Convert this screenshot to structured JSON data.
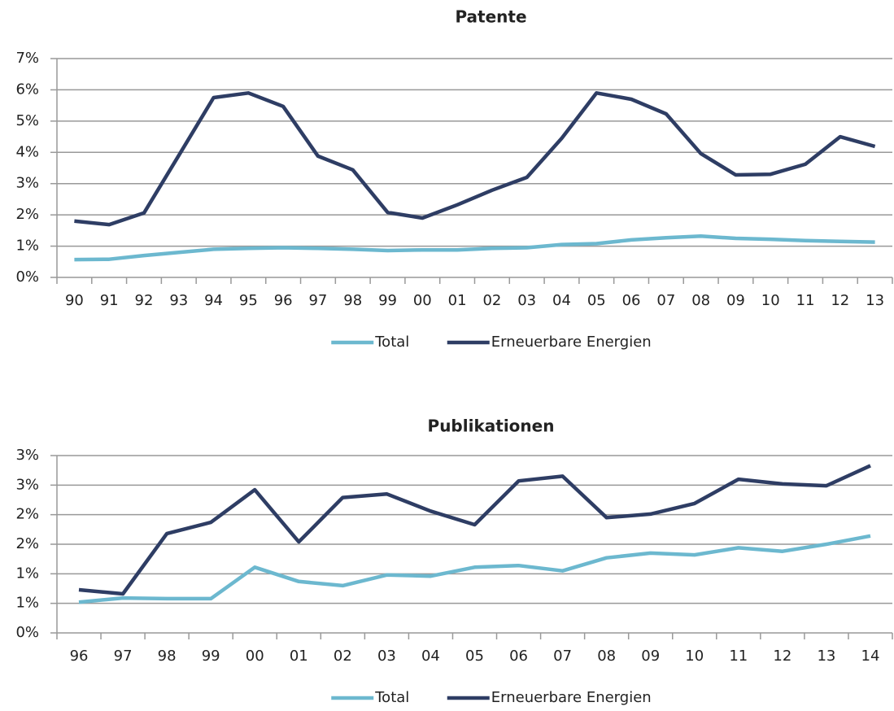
{
  "chart_data": [
    {
      "type": "line",
      "title": "Patente",
      "categories": [
        "90",
        "91",
        "92",
        "93",
        "94",
        "95",
        "96",
        "97",
        "98",
        "99",
        "00",
        "01",
        "02",
        "03",
        "04",
        "05",
        "06",
        "07",
        "08",
        "09",
        "10",
        "11",
        "12",
        "13"
      ],
      "series": [
        {
          "name": "Total",
          "color": "#6cb8cf",
          "values": [
            0.57,
            0.58,
            0.7,
            0.8,
            0.9,
            0.93,
            0.95,
            0.93,
            0.9,
            0.86,
            0.88,
            0.88,
            0.93,
            0.95,
            1.05,
            1.08,
            1.2,
            1.27,
            1.32,
            1.25,
            1.22,
            1.18,
            1.15,
            1.13
          ]
        },
        {
          "name": "Erneuerbare Energien",
          "color": "#2e3d64",
          "values": [
            1.8,
            1.69,
            2.06,
            3.9,
            5.75,
            5.9,
            5.47,
            3.88,
            3.44,
            2.08,
            1.9,
            2.32,
            2.79,
            3.2,
            4.45,
            5.9,
            5.7,
            5.23,
            3.96,
            3.28,
            3.3,
            3.62,
            4.5,
            4.19
          ]
        }
      ],
      "ylim": [
        0,
        7
      ],
      "yticks": [
        {
          "value": 0,
          "label": "0%"
        },
        {
          "value": 1,
          "label": "1%"
        },
        {
          "value": 2,
          "label": "2%"
        },
        {
          "value": 3,
          "label": "3%"
        },
        {
          "value": 4,
          "label": "4%"
        },
        {
          "value": 5,
          "label": "5%"
        },
        {
          "value": 6,
          "label": "6%"
        },
        {
          "value": 7,
          "label": "7%"
        }
      ],
      "grid": true,
      "legend": "bottom"
    },
    {
      "type": "line",
      "title": "Publikationen",
      "categories": [
        "96",
        "97",
        "98",
        "99",
        "00",
        "01",
        "02",
        "03",
        "04",
        "05",
        "06",
        "07",
        "08",
        "09",
        "10",
        "11",
        "12",
        "13",
        "14"
      ],
      "series": [
        {
          "name": "Total",
          "color": "#6cb8cf",
          "values": [
            0.52,
            0.59,
            0.58,
            0.58,
            1.11,
            0.87,
            0.8,
            0.98,
            0.96,
            1.11,
            1.14,
            1.05,
            1.27,
            1.35,
            1.32,
            1.44,
            1.38,
            1.5,
            1.64
          ]
        },
        {
          "name": "Erneuerbare Energien",
          "color": "#2e3d64",
          "values": [
            0.73,
            0.66,
            1.68,
            1.87,
            2.42,
            1.54,
            2.29,
            2.35,
            2.06,
            1.83,
            2.57,
            2.65,
            1.95,
            2.01,
            2.19,
            2.6,
            2.52,
            2.49,
            2.83
          ]
        }
      ],
      "ylim": [
        0,
        3
      ],
      "yticks": [
        {
          "value": 0,
          "label": "0%"
        },
        {
          "value": 0.5,
          "label": "1%"
        },
        {
          "value": 1,
          "label": "1%"
        },
        {
          "value": 1.5,
          "label": "2%"
        },
        {
          "value": 2,
          "label": "2%"
        },
        {
          "value": 2.5,
          "label": "3%"
        },
        {
          "value": 3,
          "label": "3%"
        }
      ],
      "grid": true,
      "legend": "bottom"
    }
  ]
}
